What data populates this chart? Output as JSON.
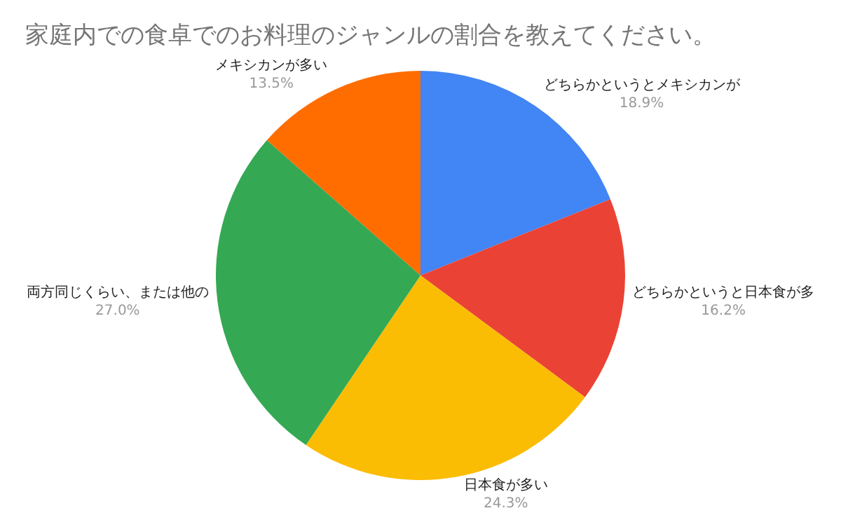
{
  "chart_data": {
    "type": "pie",
    "title": "家庭内での食卓でのお料理のジャンルの割合を教えてください。",
    "categories": [
      "どちらかというとメキシカンが",
      "どちらかというと日本食が多",
      "日本食が多い",
      "両方同じくらい、または他の",
      "メキシカンが多い"
    ],
    "values": [
      18.9,
      16.2,
      24.3,
      27.0,
      13.5
    ],
    "value_labels": [
      "18.9%",
      "16.2%",
      "24.3%",
      "27.0%",
      "13.5%"
    ],
    "colors": [
      "#4285f4",
      "#ea4335",
      "#fbbc04",
      "#34a853",
      "#ff6d01"
    ],
    "legend": false
  }
}
